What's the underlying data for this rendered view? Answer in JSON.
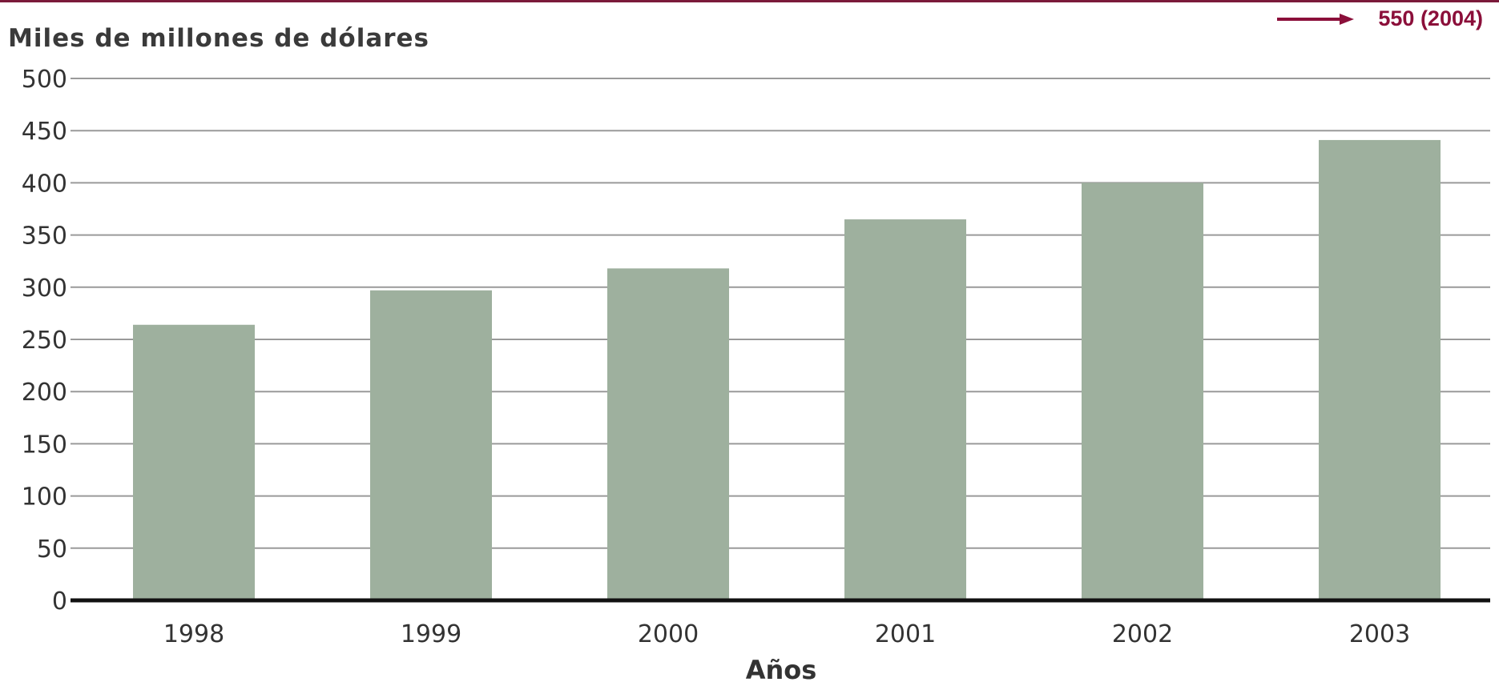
{
  "annotation": {
    "text": "550 (2004)",
    "arrow_color": "#8b0f3a"
  },
  "colors": {
    "bar": "#9eb09e",
    "grid": "#9a9a9a",
    "baseline": "#111111",
    "top_rule": "#7b1a3a"
  },
  "chart_data": {
    "type": "bar",
    "categories": [
      "1998",
      "1999",
      "2000",
      "2001",
      "2002",
      "2003"
    ],
    "values": [
      264,
      297,
      318,
      365,
      400,
      441
    ],
    "title": "",
    "xlabel": "Años",
    "ylabel": "Miles de millones de dólares",
    "ylim": [
      0,
      500
    ],
    "yticks": [
      0,
      50,
      100,
      150,
      200,
      250,
      300,
      350,
      400,
      450,
      500
    ],
    "grid": true,
    "legend": "none"
  }
}
